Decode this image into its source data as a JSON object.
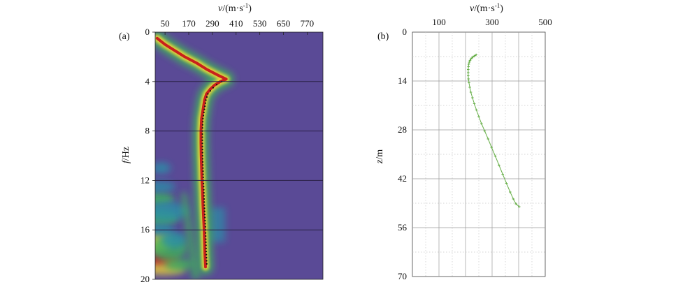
{
  "chart_data": [
    {
      "type": "heatmap",
      "panel_label": "(a)",
      "xlabel_var": "v",
      "xlabel_unit": "/(m·s",
      "xlabel_exp": "-1",
      "xlabel_close": ")",
      "ylabel_var": "f",
      "ylabel_unit": "/Hz",
      "xlim": [
        0,
        850
      ],
      "ylim": [
        20,
        0
      ],
      "xticks": [
        50,
        170,
        290,
        410,
        530,
        650,
        770
      ],
      "yticks": [
        0,
        4,
        8,
        12,
        16,
        20
      ],
      "colors": {
        "background": "#5a4a96",
        "low": "#2c8fa8",
        "mid": "#3fb35a",
        "high": "#e6d23a",
        "peak": "#c8201c",
        "picks": "#111111"
      },
      "ridge": {
        "f": [
          0.5,
          1.0,
          1.5,
          2.0,
          2.5,
          3.0,
          3.5,
          3.8,
          4.0,
          4.3,
          4.6,
          5.0,
          5.5,
          6.0,
          6.5,
          7.0,
          8.0,
          9.0,
          10.0,
          11.0,
          12.0,
          13.0,
          14.0,
          15.0,
          16.0,
          17.0,
          18.0,
          19.0
        ],
        "v": [
          10,
          50,
          100,
          150,
          210,
          260,
          320,
          360,
          330,
          300,
          280,
          260,
          250,
          245,
          240,
          235,
          232,
          232,
          233,
          235,
          237,
          240,
          242,
          245,
          248,
          250,
          252,
          255
        ]
      }
    },
    {
      "type": "scatter",
      "panel_label": "(b)",
      "xlabel_var": "v",
      "xlabel_unit": "/(m·s",
      "xlabel_exp": "-1",
      "xlabel_close": ")",
      "ylabel_var": "z",
      "ylabel_unit": "/m",
      "xlim": [
        0,
        500
      ],
      "ylim": [
        70,
        0
      ],
      "xticks": [
        100,
        300,
        500
      ],
      "xticks_minor": [
        0,
        200,
        400
      ],
      "yticks": [
        0,
        14,
        28,
        42,
        56,
        70
      ],
      "grid": true,
      "colors": {
        "series": "#6ab04c"
      },
      "series": [
        {
          "points": [
            {
              "x": 240,
              "z": 6.5
            },
            {
              "x": 236,
              "z": 6.7
            },
            {
              "x": 232,
              "z": 6.9
            },
            {
              "x": 228,
              "z": 7.1
            },
            {
              "x": 224,
              "z": 7.4
            },
            {
              "x": 220,
              "z": 7.7
            },
            {
              "x": 217,
              "z": 8.1
            },
            {
              "x": 214,
              "z": 8.6
            },
            {
              "x": 212,
              "z": 9.2
            },
            {
              "x": 211,
              "z": 9.9
            },
            {
              "x": 210,
              "z": 10.7
            },
            {
              "x": 210,
              "z": 11.6
            },
            {
              "x": 210,
              "z": 12.5
            },
            {
              "x": 211,
              "z": 13.4
            },
            {
              "x": 213,
              "z": 14.5
            },
            {
              "x": 216,
              "z": 15.8
            },
            {
              "x": 220,
              "z": 17.2
            },
            {
              "x": 226,
              "z": 18.8
            },
            {
              "x": 233,
              "z": 20.5
            },
            {
              "x": 241,
              "z": 22.3
            },
            {
              "x": 250,
              "z": 24.2
            },
            {
              "x": 260,
              "z": 26.2
            },
            {
              "x": 272,
              "z": 28.3
            },
            {
              "x": 285,
              "z": 30.6
            },
            {
              "x": 298,
              "z": 33.0
            },
            {
              "x": 312,
              "z": 35.5
            },
            {
              "x": 326,
              "z": 38.1
            },
            {
              "x": 340,
              "z": 40.7
            },
            {
              "x": 354,
              "z": 43.3
            },
            {
              "x": 368,
              "z": 45.8
            },
            {
              "x": 380,
              "z": 47.8
            },
            {
              "x": 390,
              "z": 49.2
            },
            {
              "x": 402,
              "z": 50.0
            }
          ]
        }
      ]
    }
  ]
}
